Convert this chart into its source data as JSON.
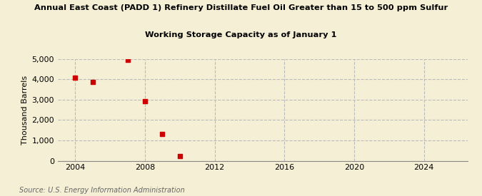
{
  "title_line1": "Annual East Coast (PADD 1) Refinery Distillate Fuel Oil Greater than 15 to 500 ppm Sulfur",
  "title_line2": "Working Storage Capacity as of January 1",
  "ylabel": "Thousand Barrels",
  "source": "Source: U.S. Energy Information Administration",
  "background_color": "#f5efd5",
  "plot_bg_color": "#f5efd5",
  "marker_color": "#cc0000",
  "marker_size": 5,
  "xlim": [
    2003.0,
    2026.5
  ],
  "ylim": [
    0,
    5000
  ],
  "xticks": [
    2004,
    2008,
    2012,
    2016,
    2020,
    2024
  ],
  "yticks": [
    0,
    1000,
    2000,
    3000,
    4000,
    5000
  ],
  "ytick_labels": [
    "0",
    "1,000",
    "2,000",
    "3,000",
    "4,000",
    "5,000"
  ],
  "x_data": [
    2004,
    2005,
    2007,
    2008,
    2009,
    2010
  ],
  "y_data": [
    4080,
    3880,
    4940,
    2920,
    1320,
    220
  ]
}
